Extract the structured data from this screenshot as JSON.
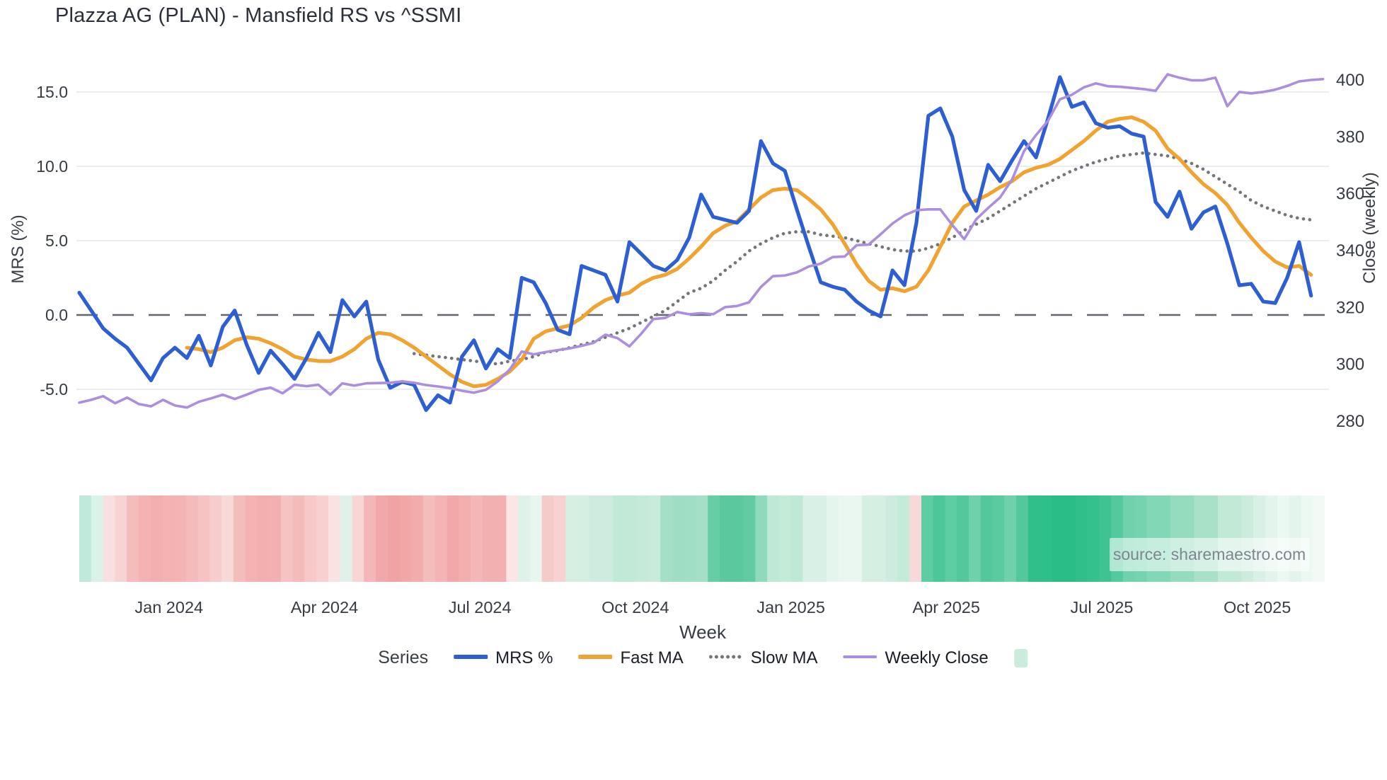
{
  "header": {
    "title": "Plazza AG (PLAN) - Mansfield RS vs ^SSMI"
  },
  "source": {
    "text": "source: sharemaestro.com"
  },
  "legend": {
    "series_label": "Series",
    "heatmap_swatch_color": "#c9ecdc"
  },
  "chart_data": {
    "type": "line",
    "title": "Plazza AG (PLAN) - Mansfield RS vs ^SSMI",
    "x": {
      "label": "Week",
      "tick_labels": [
        "Jan 2024",
        "Apr 2024",
        "Jul 2024",
        "Oct 2024",
        "Jan 2025",
        "Apr 2025",
        "Jul 2025",
        "Oct 2025"
      ],
      "tick_week_index": [
        7.5,
        20.5,
        33.5,
        46.5,
        59.5,
        72.5,
        85.5,
        98.5
      ],
      "weeks_total": 105,
      "range_note": "weekly points from mid-Nov 2023 to mid-Nov 2025"
    },
    "y_left": {
      "label": "MRS (%)",
      "tick_labels": [
        "15.0",
        "10.0",
        "5.0",
        "0.0",
        "-5.0"
      ],
      "tick_values": [
        15,
        10,
        5,
        0,
        -5
      ],
      "zero_line_dashed": true
    },
    "y_right": {
      "label": "Close (weekly)",
      "tick_labels": [
        "400",
        "380",
        "360",
        "340",
        "320",
        "300",
        "280"
      ],
      "tick_values": [
        400,
        380,
        360,
        340,
        320,
        300,
        280
      ]
    },
    "series": [
      {
        "name": "MRS %",
        "axis": "left",
        "style": "solid",
        "color": "#2d5fd3",
        "values": [
          1.5,
          0.3,
          -0.9,
          -1.6,
          -2.2,
          -3.3,
          -4.4,
          -2.9,
          -2.2,
          -2.9,
          -1.4,
          -3.4,
          -0.8,
          0.3,
          -2.0,
          -3.9,
          -2.4,
          -3.3,
          -4.3,
          -2.9,
          -1.2,
          -2.5,
          1.0,
          -0.1,
          0.9,
          -3.0,
          -4.9,
          -4.5,
          -4.7,
          -6.4,
          -5.4,
          -5.9,
          -2.8,
          -1.7,
          -3.6,
          -2.3,
          -2.9,
          2.5,
          2.2,
          0.8,
          -1.0,
          -1.3,
          3.3,
          3.0,
          2.7,
          0.9,
          4.9,
          4.1,
          3.3,
          3.0,
          3.7,
          5.2,
          8.1,
          6.6,
          6.4,
          6.2,
          7.0,
          11.7,
          10.2,
          9.7,
          7.1,
          4.6,
          2.2,
          1.9,
          1.7,
          0.9,
          0.3,
          -0.1,
          3.0,
          2.0,
          6.2,
          13.4,
          13.9,
          12.0,
          8.4,
          7.0,
          10.1,
          9.0,
          10.4,
          11.7,
          10.6,
          13.2,
          16.0,
          14.0,
          14.3,
          12.9,
          12.6,
          12.7,
          12.2,
          12.0,
          7.6,
          6.6,
          8.3,
          5.8,
          6.9,
          7.3,
          4.8,
          2.0,
          2.1,
          0.9,
          0.8,
          2.5,
          4.9,
          1.3,
          null
        ]
      },
      {
        "name": "Fast MA",
        "axis": "left",
        "style": "solid",
        "color": "#f0a330",
        "values": [
          null,
          null,
          null,
          null,
          null,
          null,
          null,
          null,
          null,
          -2.2,
          -2.3,
          -2.5,
          -2.2,
          -1.7,
          -1.5,
          -1.6,
          -1.9,
          -2.3,
          -2.8,
          -3.0,
          -3.1,
          -3.1,
          -2.8,
          -2.3,
          -1.6,
          -1.2,
          -1.3,
          -1.7,
          -2.2,
          -2.8,
          -3.4,
          -4.0,
          -4.5,
          -4.8,
          -4.7,
          -4.3,
          -3.8,
          -3.0,
          -1.6,
          -1.1,
          -0.9,
          -0.7,
          -0.2,
          0.5,
          1.0,
          1.3,
          1.5,
          2.1,
          2.5,
          2.7,
          3.1,
          3.8,
          4.6,
          5.5,
          6.0,
          6.3,
          7.1,
          7.9,
          8.4,
          8.5,
          8.4,
          7.8,
          7.1,
          6.1,
          4.8,
          3.4,
          2.3,
          1.7,
          1.8,
          1.6,
          1.9,
          3.0,
          4.6,
          6.2,
          7.3,
          7.7,
          8.1,
          8.6,
          9.0,
          9.6,
          9.9,
          10.1,
          10.5,
          11.1,
          11.7,
          12.4,
          13.0,
          13.2,
          13.3,
          13.0,
          12.4,
          11.2,
          10.5,
          9.6,
          8.8,
          8.2,
          7.4,
          6.2,
          5.2,
          4.3,
          3.6,
          3.2,
          3.3,
          2.7,
          null
        ]
      },
      {
        "name": "Slow MA",
        "axis": "left",
        "style": "dotted",
        "color": "#72757c",
        "values": [
          null,
          null,
          null,
          null,
          null,
          null,
          null,
          null,
          null,
          null,
          null,
          null,
          null,
          null,
          null,
          null,
          null,
          null,
          null,
          null,
          null,
          null,
          null,
          null,
          null,
          null,
          null,
          null,
          -2.6,
          -2.7,
          -2.8,
          -2.9,
          -3.0,
          -3.1,
          -3.2,
          -3.3,
          -3.1,
          -3.0,
          -2.8,
          -2.5,
          -2.4,
          -2.2,
          -2.0,
          -1.8,
          -1.5,
          -1.2,
          -0.9,
          -0.5,
          -0.1,
          0.3,
          0.9,
          1.5,
          1.8,
          2.3,
          3.0,
          3.6,
          4.3,
          4.8,
          5.2,
          5.5,
          5.6,
          5.6,
          5.4,
          5.3,
          5.2,
          5.0,
          4.8,
          4.6,
          4.4,
          4.3,
          4.3,
          4.5,
          4.8,
          5.2,
          5.7,
          6.1,
          6.5,
          7.0,
          7.5,
          8.0,
          8.5,
          8.9,
          9.3,
          9.7,
          10.0,
          10.3,
          10.5,
          10.7,
          10.8,
          10.9,
          10.8,
          10.7,
          10.5,
          10.2,
          9.8,
          9.3,
          8.8,
          8.3,
          7.7,
          7.3,
          7.0,
          6.7,
          6.5,
          6.4,
          null
        ]
      },
      {
        "name": "Weekly Close",
        "axis": "right",
        "style": "solid",
        "color": "#ab8fdc",
        "values": [
          286.5,
          287.5,
          288.8,
          286.3,
          288.3,
          286.0,
          285.2,
          287.5,
          285.5,
          284.8,
          286.8,
          288.0,
          289.3,
          287.8,
          289.3,
          291.0,
          291.8,
          289.8,
          292.8,
          292.3,
          292.8,
          289.3,
          293.3,
          292.5,
          293.3,
          293.4,
          293.5,
          294.0,
          293.5,
          292.7,
          292.2,
          291.6,
          290.7,
          290.0,
          291.0,
          294.0,
          298.2,
          304.5,
          303.5,
          304.3,
          305.0,
          305.6,
          306.5,
          307.5,
          310.4,
          309.2,
          306.3,
          310.8,
          315.9,
          316.3,
          318.4,
          317.6,
          318.0,
          317.6,
          320.1,
          320.5,
          321.8,
          327.2,
          331.0,
          331.2,
          332.3,
          334.4,
          335.4,
          337.7,
          337.9,
          341.9,
          342.1,
          345.7,
          349.5,
          352.4,
          354.2,
          354.5,
          354.5,
          349.0,
          344.0,
          351.0,
          355.0,
          358.7,
          365.0,
          375.0,
          380.6,
          385.6,
          393.2,
          394.8,
          397.4,
          398.8,
          397.8,
          397.6,
          397.2,
          396.8,
          396.2,
          402.0,
          400.8,
          399.9,
          399.9,
          400.8,
          390.8,
          395.8,
          395.3,
          395.8,
          396.6,
          397.9,
          399.5,
          400.0,
          400.3
        ]
      }
    ],
    "heatmap": {
      "description": "weekly signal strip under chart, red = weak, green = strong",
      "colors": [
        "#bfeadb",
        "#d9f3e9",
        "#f9e0e0",
        "#f7d4d4",
        "#f5bcbc",
        "#f4b2b2",
        "#f3aeae",
        "#f4b2b2",
        "#f4b4b4",
        "#f5baba",
        "#f6c2c2",
        "#f7cccc",
        "#f9d8d8",
        "#f5bcbc",
        "#f4b2b2",
        "#f3aeae",
        "#f3b0b0",
        "#f6c2c2",
        "#f5baba",
        "#f7c8c8",
        "#f8d0d0",
        "#fae2e2",
        "#def2ea",
        "#f8d6d6",
        "#f4b6b6",
        "#f2a8a8",
        "#f1a2a2",
        "#f2a6a6",
        "#f3acac",
        "#f5bcbc",
        "#f4b4b4",
        "#f2a8a8",
        "#f3aeae",
        "#f4b6b6",
        "#f3b0b0",
        "#f3b0b0",
        "#fbe5e5",
        "#dff2ea",
        "#e9f6f0",
        "#f7caca",
        "#f8d2d2",
        "#d5efe3",
        "#d5efe3",
        "#cdecdf",
        "#cdecdf",
        "#c2e9d8",
        "#c2e9d8",
        "#c6ead9",
        "#c9ebdc",
        "#a5dfc8",
        "#9fdec5",
        "#a0dec5",
        "#a5dfc8",
        "#66cda4",
        "#5bc89d",
        "#5bc89d",
        "#62cba1",
        "#8fd9bc",
        "#bfe8d6",
        "#c4ead8",
        "#bfe8d6",
        "#d8f0e5",
        "#d8f0e5",
        "#e4f5ed",
        "#eaf7f1",
        "#eaf7f1",
        "#d5efe3",
        "#d5efe3",
        "#cdecdf",
        "#c4ead9",
        "#f6dada",
        "#5fcda4",
        "#4cc79a",
        "#5fcda4",
        "#52c89c",
        "#6fd1ab",
        "#52c89c",
        "#5cca9f",
        "#6fd1ab",
        "#52c89c",
        "#2fbf8a",
        "#2fbf8a",
        "#2abd87",
        "#2abd87",
        "#2fbf8a",
        "#35c18d",
        "#3fc392",
        "#53c99e",
        "#6fd2ad",
        "#76d3af",
        "#82d7b6",
        "#82d7b6",
        "#95dcbf",
        "#95dcbf",
        "#a8e1c8",
        "#a8e1c8",
        "#c2e9d6",
        "#c2e9d6",
        "#cdecdd",
        "#d8f0e6",
        "#e2f4ec",
        "#ecf8f2",
        "#e2f4ec",
        "#ecf8f2",
        "#f2faf6"
      ]
    }
  }
}
